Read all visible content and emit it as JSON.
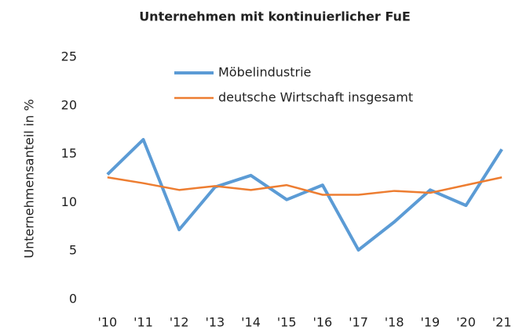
{
  "chart_data": {
    "type": "line",
    "title": "Unternehmen mit kontinuierlicher FuE",
    "y_label": "Unternehmensanteil in %",
    "categories": [
      "'10",
      "'11",
      "'12",
      "'13",
      "'14",
      "'15",
      "'16",
      "'17",
      "'18",
      "'19",
      "'20",
      "'21"
    ],
    "series": [
      {
        "name": "Möbelindustrie",
        "color": "#5b9bd5",
        "values": [
          12.9,
          16.5,
          7.2,
          11.6,
          12.8,
          10.3,
          11.8,
          5.1,
          8.0,
          11.3,
          9.7,
          15.5
        ]
      },
      {
        "name": "deutsche Wirtschaft insgesamt",
        "color": "#ed7d31",
        "values": [
          12.6,
          12.0,
          11.3,
          11.7,
          11.3,
          11.8,
          10.8,
          10.8,
          11.2,
          11.0,
          11.8,
          12.6
        ]
      }
    ],
    "ylim": [
      0,
      25
    ],
    "yticks": [
      0,
      5,
      10,
      15,
      20,
      25
    ],
    "grid": false,
    "legend": "top"
  }
}
